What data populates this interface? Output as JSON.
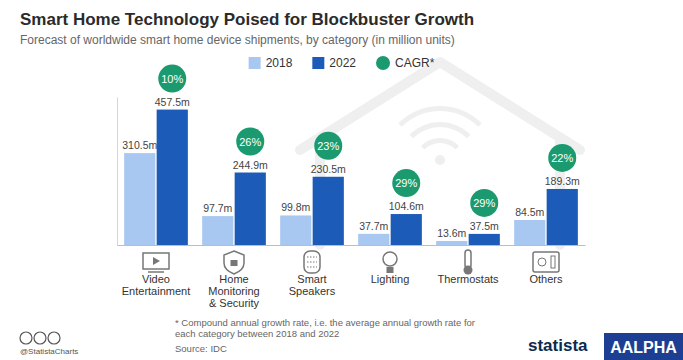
{
  "chart_data": {
    "type": "bar",
    "title": "Smart Home Technology Poised for Blockbuster Growth",
    "subtitle": "Forecast of worldwide smart home device shipments, by category (in million units)",
    "categories": [
      "Video Entertainment",
      "Home Monitoring & Security",
      "Smart Speakers",
      "Lighting",
      "Thermostats",
      "Others"
    ],
    "series": [
      {
        "name": "2018",
        "color": "#a9c8f1",
        "values": [
          310.5,
          97.7,
          99.8,
          37.7,
          13.6,
          84.5
        ],
        "value_labels": [
          "310.5m",
          "97.7m",
          "99.8m",
          "37.7m",
          "13.6m",
          "84.5m"
        ]
      },
      {
        "name": "2022",
        "color": "#1c5cb8",
        "values": [
          457.5,
          244.9,
          230.5,
          104.6,
          37.5,
          189.3
        ],
        "value_labels": [
          "457.5m",
          "244.9m",
          "230.5m",
          "104.6m",
          "37.5m",
          "189.3m"
        ]
      }
    ],
    "cagr": {
      "name": "CAGR*",
      "color": "#1b9a6f",
      "values": [
        10,
        26,
        23,
        29,
        29,
        22
      ],
      "value_labels": [
        "10%",
        "26%",
        "23%",
        "29%",
        "29%",
        "22%"
      ]
    },
    "ylim": [
      0,
      500
    ],
    "yticks": [],
    "tick_labels": "x",
    "grid": false,
    "legend": "top",
    "data_labels": true,
    "footnote": "* Compound annual growth rate, i.e. the average annual growth rate for each category between 2018 and 2022",
    "source": "Source: IDC",
    "credit": "@StatistaCharts",
    "logo": "statista",
    "badge": "AALPHA"
  }
}
